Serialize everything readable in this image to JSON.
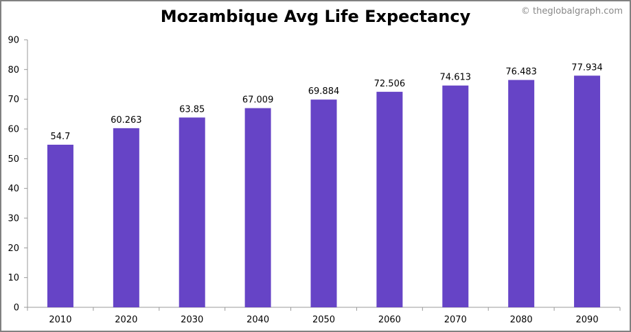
{
  "watermark": "© theglobalgraph.com",
  "colors": {
    "bar": "#6644c6",
    "axis": "#999999",
    "frame": "#808080"
  },
  "chart_data": {
    "type": "bar",
    "title": "Mozambique Avg Life Expectancy",
    "xlabel": "",
    "ylabel": "",
    "categories": [
      "2010",
      "2020",
      "2030",
      "2040",
      "2050",
      "2060",
      "2070",
      "2080",
      "2090"
    ],
    "values": [
      54.7,
      60.263,
      63.85,
      67.009,
      69.884,
      72.506,
      74.613,
      76.483,
      77.934
    ],
    "data_labels": [
      "54.7",
      "60.263",
      "63.85",
      "67.009",
      "69.884",
      "72.506",
      "74.613",
      "76.483",
      "77.934"
    ],
    "ylim": [
      0,
      90
    ],
    "yticks": [
      0,
      10,
      20,
      30,
      40,
      50,
      60,
      70,
      80,
      90
    ],
    "grid": false,
    "legend": "none"
  }
}
